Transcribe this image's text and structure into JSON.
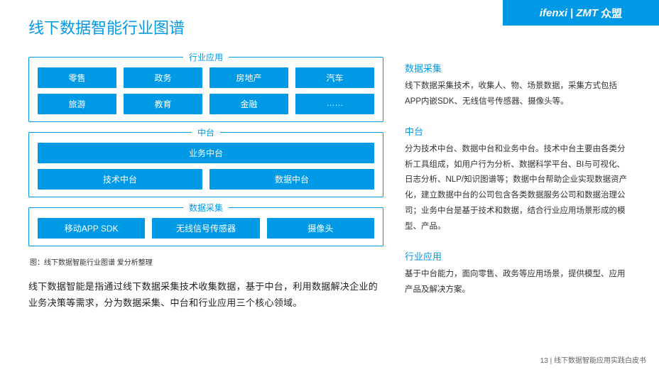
{
  "brand": {
    "b1": "ifenxi",
    "sep": "|",
    "b2": "ZMT",
    "b3": "众盟"
  },
  "title": "线下数据智能行业图谱",
  "colors": {
    "accent": "#0099e5",
    "bg": "#ffffff"
  },
  "groups": {
    "industry": {
      "label": "行业应用",
      "rows": [
        [
          "零售",
          "政务",
          "房地产",
          "汽车"
        ],
        [
          "旅游",
          "教育",
          "金融",
          "……"
        ]
      ]
    },
    "middle": {
      "label": "中台",
      "rows": [
        [
          "业务中台"
        ],
        [
          "技术中台",
          "数据中台"
        ]
      ]
    },
    "collect": {
      "label": "数据采集",
      "rows": [
        [
          "移动APP SDK",
          "无线信号传感器",
          "摄像头"
        ]
      ]
    }
  },
  "caption": "图：线下数据智能行业图谱  爱分析整理",
  "para": "线下数据智能是指通过线下数据采集技术收集数据，基于中台，利用数据解决企业的业务决策等需求，分为数据采集、中台和行业应用三个核心领域。",
  "sections": {
    "s1": {
      "title": "数据采集",
      "body": "线下数据采集技术，收集人、物、场景数据，采集方式包括APP内嵌SDK、无线信号传感器、摄像头等。"
    },
    "s2": {
      "title": "中台",
      "body": "分为技术中台、数据中台和业务中台。技术中台主要由各类分析工具组成，如用户行为分析、数据科学平台、BI与可视化、日志分析、NLP/知识图谱等；数据中台帮助企业实现数据资产化，建立数据中台的公司包含各类数据服务公司和数据治理公司；业务中台是基于技术和数据，结合行业应用场景形成的模型、产品。"
    },
    "s3": {
      "title": "行业应用",
      "body": "基于中台能力，面向零售、政务等应用场景，提供模型、应用产品及解决方案。"
    }
  },
  "footer": {
    "page": "13",
    "sep": " | ",
    "doc": "线下数据智能应用实践白皮书"
  }
}
